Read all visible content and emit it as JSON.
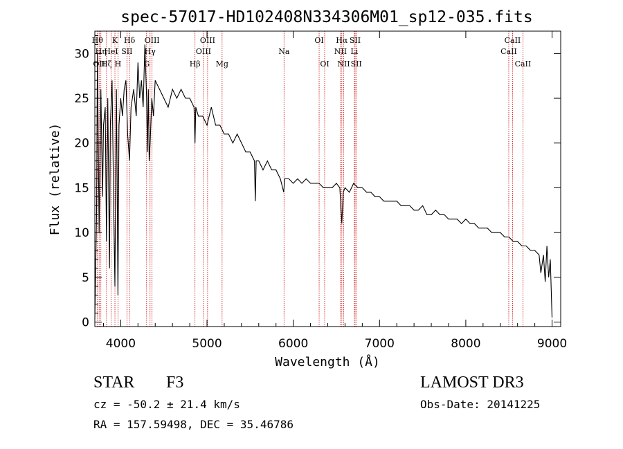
{
  "chart_data": {
    "type": "line",
    "title": "spec-57017-HD102408N334306M01_sp12-035.fits",
    "xlabel": "Wavelength (Å)",
    "ylabel": "Flux (relative)",
    "xlim": [
      3700,
      9100
    ],
    "ylim": [
      -0.5,
      32.5
    ],
    "xticks": [
      4000,
      5000,
      6000,
      7000,
      8000,
      9000
    ],
    "yticks": [
      0,
      5,
      10,
      15,
      20,
      25,
      30
    ],
    "series": [
      {
        "name": "spectrum",
        "x": [
          3700,
          3720,
          3730,
          3750,
          3770,
          3790,
          3800,
          3820,
          3835,
          3850,
          3870,
          3880,
          3900,
          3920,
          3933,
          3950,
          3968,
          3980,
          4000,
          4020,
          4040,
          4060,
          4080,
          4102,
          4120,
          4150,
          4180,
          4200,
          4220,
          4240,
          4260,
          4280,
          4300,
          4310,
          4320,
          4330,
          4341,
          4360,
          4380,
          4400,
          4450,
          4500,
          4550,
          4600,
          4650,
          4700,
          4750,
          4800,
          4850,
          4861,
          4870,
          4900,
          4950,
          5000,
          5050,
          5100,
          5150,
          5200,
          5250,
          5300,
          5350,
          5400,
          5450,
          5500,
          5550,
          5560,
          5570,
          5600,
          5650,
          5700,
          5750,
          5800,
          5850,
          5890,
          5900,
          5950,
          6000,
          6050,
          6100,
          6150,
          6200,
          6250,
          6300,
          6350,
          6400,
          6450,
          6500,
          6540,
          6563,
          6580,
          6600,
          6650,
          6700,
          6750,
          6800,
          6850,
          6900,
          6950,
          7000,
          7050,
          7100,
          7150,
          7200,
          7250,
          7300,
          7350,
          7400,
          7450,
          7500,
          7550,
          7600,
          7650,
          7700,
          7750,
          7800,
          7850,
          7900,
          7950,
          8000,
          8050,
          8100,
          8150,
          8200,
          8250,
          8300,
          8350,
          8400,
          8450,
          8500,
          8550,
          8600,
          8650,
          8700,
          8750,
          8800,
          8850,
          8870,
          8900,
          8920,
          8940,
          8960,
          8980,
          9000
        ],
        "values": [
          0.3,
          12,
          30,
          10,
          26,
          14,
          22,
          24,
          9,
          25,
          6,
          22,
          27,
          12,
          4,
          26,
          3,
          22,
          25,
          23,
          26,
          27,
          21,
          18,
          24,
          26,
          23,
          29,
          25,
          27,
          24,
          31,
          25,
          19,
          26,
          18,
          20,
          25,
          23,
          27,
          26,
          25,
          24,
          26,
          25,
          26,
          25,
          25,
          24,
          20,
          24,
          23,
          23,
          22,
          24,
          22,
          22,
          21,
          21,
          20,
          21,
          20,
          19,
          19,
          18,
          13.5,
          18,
          18,
          17,
          18,
          17,
          17,
          16,
          14.5,
          16,
          16,
          15.5,
          16,
          15.5,
          16,
          15.5,
          15.5,
          15.5,
          15,
          15,
          15,
          15.5,
          15,
          11,
          14.5,
          15,
          14.5,
          15.5,
          15,
          15,
          14.5,
          14.5,
          14,
          14,
          13.5,
          13.5,
          13.5,
          13.5,
          13,
          13,
          13,
          12.5,
          12.5,
          13,
          12,
          12,
          12.5,
          12,
          12,
          11.5,
          11.5,
          11.5,
          11,
          11.5,
          11,
          11,
          10.5,
          10.5,
          10.5,
          10,
          10,
          10,
          9.5,
          9.5,
          9,
          9,
          8.5,
          8.5,
          8,
          8,
          7.5,
          5.5,
          7.5,
          4.5,
          8.5,
          5,
          7,
          0.5
        ]
      }
    ],
    "line_markers": [
      {
        "x": 3730,
        "label": "Hθ",
        "row": 1
      },
      {
        "x": 3750,
        "label": "OII",
        "row": 3
      },
      {
        "x": 3770,
        "label": "Hη",
        "row": 2
      },
      {
        "x": 3835,
        "label": "Hζ",
        "row": 3
      },
      {
        "x": 3889,
        "label": "HeI",
        "row": 2
      },
      {
        "x": 3933,
        "label": "K",
        "row": 1
      },
      {
        "x": 3968,
        "label": "H",
        "row": 3
      },
      {
        "x": 4072,
        "label": "SII",
        "row": 2
      },
      {
        "x": 4102,
        "label": "Hδ",
        "row": 1
      },
      {
        "x": 4300,
        "label": "G",
        "row": 3
      },
      {
        "x": 4340,
        "label": "Hγ",
        "row": 2
      },
      {
        "x": 4363,
        "label": "OIII",
        "row": 1
      },
      {
        "x": 4861,
        "label": "Hβ",
        "row": 3
      },
      {
        "x": 4959,
        "label": "OIII",
        "row": 2
      },
      {
        "x": 5007,
        "label": "OIII",
        "row": 1
      },
      {
        "x": 5175,
        "label": "Mg",
        "row": 3
      },
      {
        "x": 5893,
        "label": "Na",
        "row": 2
      },
      {
        "x": 6300,
        "label": "OI",
        "row": 1
      },
      {
        "x": 6364,
        "label": "OI",
        "row": 3
      },
      {
        "x": 6548,
        "label": "NII",
        "row": 2
      },
      {
        "x": 6563,
        "label": "Hα",
        "row": 1
      },
      {
        "x": 6584,
        "label": "NII",
        "row": 3
      },
      {
        "x": 6708,
        "label": "Li",
        "row": 2
      },
      {
        "x": 6717,
        "label": "SII",
        "row": 1
      },
      {
        "x": 6731,
        "label": "SII",
        "row": 3
      },
      {
        "x": 8498,
        "label": "CaII",
        "row": 2
      },
      {
        "x": 8542,
        "label": "CaII",
        "row": 1
      },
      {
        "x": 8662,
        "label": "CaII",
        "row": 3
      }
    ],
    "line_color": "#000000",
    "marker_color": "#cc0000",
    "grid": false,
    "legend": "none"
  },
  "info": {
    "object_class": "STAR",
    "subclass": "F3",
    "survey": "LAMOST DR3",
    "redshift": "cz = -50.2 ± 21.4 km/s",
    "obs_date": "Obs-Date: 20141225",
    "coords": "RA = 157.59498, DEC =  35.46786"
  }
}
